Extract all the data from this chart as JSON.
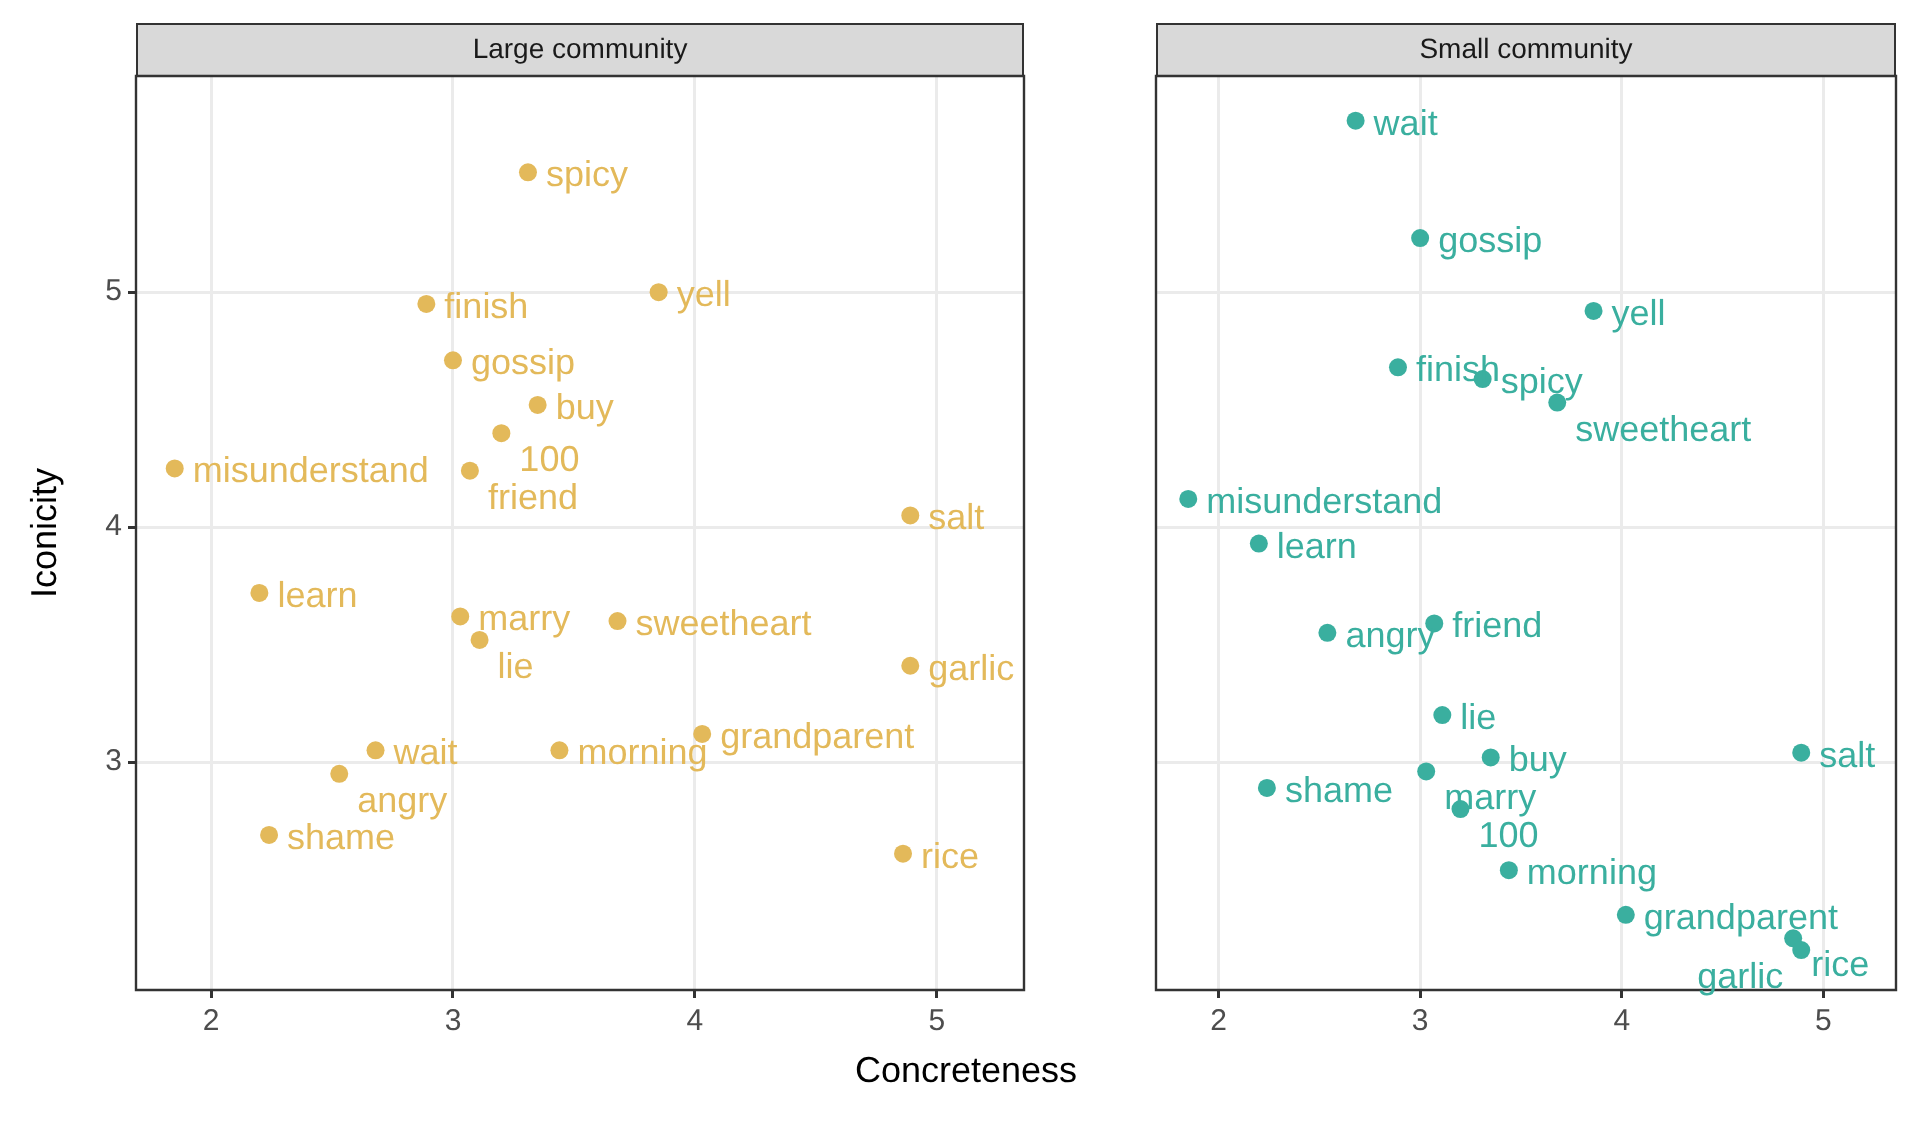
{
  "chart_data": [
    {
      "type": "scatter",
      "title": "Large community",
      "xlabel": "Concreteness",
      "ylabel": "Iconicity",
      "xlim": [
        1.69,
        5.36
      ],
      "ylim": [
        2.03,
        5.92
      ],
      "xticks": [
        2,
        3,
        4,
        5
      ],
      "yticks": [
        3,
        4,
        5
      ],
      "grid": true,
      "marker": "circle",
      "legend": false,
      "series": [
        {
          "color": "#e3b95a",
          "x": [
            3.31,
            3.85,
            2.89,
            3.0,
            3.35,
            3.2,
            3.07,
            1.85,
            4.89,
            2.2,
            3.03,
            3.68,
            3.11,
            4.89,
            4.03,
            2.68,
            3.44,
            2.53,
            2.24,
            4.86
          ],
          "values": [
            5.51,
            5.0,
            4.95,
            4.71,
            4.52,
            4.4,
            4.24,
            4.25,
            4.05,
            3.72,
            3.62,
            3.6,
            3.52,
            3.41,
            3.12,
            3.05,
            3.05,
            2.95,
            2.69,
            2.61
          ]
        }
      ],
      "annotations": [
        {
          "text": "spicy",
          "x": 3.31,
          "y": 5.51
        },
        {
          "text": "yell",
          "x": 3.85,
          "y": 5.0
        },
        {
          "text": "finish",
          "x": 2.89,
          "y": 4.95
        },
        {
          "text": "gossip",
          "x": 3.0,
          "y": 4.71
        },
        {
          "text": "buy",
          "x": 3.35,
          "y": 4.52
        },
        {
          "text": "100",
          "x": 3.2,
          "y": 4.4
        },
        {
          "text": "friend",
          "x": 3.07,
          "y": 4.24
        },
        {
          "text": "misunderstand",
          "x": 1.85,
          "y": 4.25
        },
        {
          "text": "salt",
          "x": 4.89,
          "y": 4.05
        },
        {
          "text": "learn",
          "x": 2.2,
          "y": 3.72
        },
        {
          "text": "marry",
          "x": 3.03,
          "y": 3.62
        },
        {
          "text": "sweetheart",
          "x": 3.68,
          "y": 3.6
        },
        {
          "text": "lie",
          "x": 3.11,
          "y": 3.52
        },
        {
          "text": "garlic",
          "x": 4.89,
          "y": 3.41
        },
        {
          "text": "grandparent",
          "x": 4.03,
          "y": 3.12
        },
        {
          "text": "wait",
          "x": 2.68,
          "y": 3.05
        },
        {
          "text": "morning",
          "x": 3.44,
          "y": 3.05
        },
        {
          "text": "angry",
          "x": 2.53,
          "y": 2.95
        },
        {
          "text": "shame",
          "x": 2.24,
          "y": 2.69
        },
        {
          "text": "rice",
          "x": 4.86,
          "y": 2.61
        }
      ]
    },
    {
      "type": "scatter",
      "title": "Small community",
      "xlim": [
        1.69,
        5.36
      ],
      "ylim": [
        2.03,
        5.92
      ],
      "xticks": [
        2,
        3,
        4,
        5
      ],
      "yticks": [
        3,
        4,
        5
      ],
      "grid": true,
      "marker": "circle",
      "legend": false,
      "tick_labels": "x",
      "series": [
        {
          "color": "#3aaf9f",
          "x": [
            2.68,
            3.0,
            3.86,
            2.89,
            3.31,
            3.68,
            1.85,
            2.2,
            3.07,
            2.54,
            3.11,
            4.89,
            3.35,
            3.03,
            2.24,
            3.2,
            3.44,
            4.02,
            4.85,
            4.89
          ],
          "values": [
            5.73,
            5.23,
            4.92,
            4.68,
            4.63,
            4.53,
            4.12,
            3.93,
            3.59,
            3.55,
            3.2,
            3.04,
            3.02,
            2.96,
            2.89,
            2.8,
            2.54,
            2.35,
            2.25,
            2.2
          ]
        }
      ],
      "annotations": [
        {
          "text": "wait",
          "x": 2.68,
          "y": 5.73
        },
        {
          "text": "gossip",
          "x": 3.0,
          "y": 5.23
        },
        {
          "text": "yell",
          "x": 3.86,
          "y": 4.92
        },
        {
          "text": "finish",
          "x": 2.89,
          "y": 4.68
        },
        {
          "text": "spicy",
          "x": 3.31,
          "y": 4.63
        },
        {
          "text": "sweetheart",
          "x": 3.68,
          "y": 4.53
        },
        {
          "text": "misunderstand",
          "x": 1.85,
          "y": 4.12
        },
        {
          "text": "learn",
          "x": 2.2,
          "y": 3.93
        },
        {
          "text": "friend",
          "x": 3.07,
          "y": 3.59
        },
        {
          "text": "angry",
          "x": 2.54,
          "y": 3.55
        },
        {
          "text": "lie",
          "x": 3.11,
          "y": 3.2
        },
        {
          "text": "salt",
          "x": 4.89,
          "y": 3.04
        },
        {
          "text": "buy",
          "x": 3.35,
          "y": 3.02
        },
        {
          "text": "marry",
          "x": 3.03,
          "y": 2.96
        },
        {
          "text": "shame",
          "x": 2.24,
          "y": 2.89
        },
        {
          "text": "100",
          "x": 3.2,
          "y": 2.8
        },
        {
          "text": "morning",
          "x": 3.44,
          "y": 2.54
        },
        {
          "text": "grandparent",
          "x": 4.02,
          "y": 2.35
        },
        {
          "text": "rice",
          "x": 4.85,
          "y": 2.25
        },
        {
          "text": "garlic",
          "x": 4.89,
          "y": 2.2
        }
      ]
    }
  ]
}
